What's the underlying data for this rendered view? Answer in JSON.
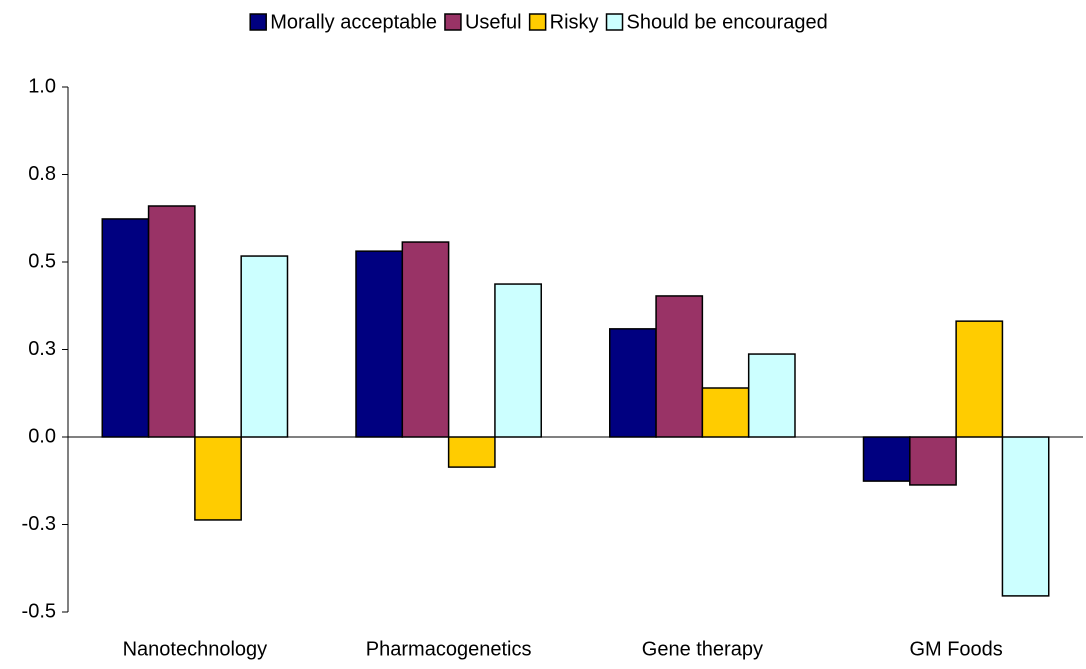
{
  "chart_data": {
    "type": "bar",
    "categories": [
      "Nanotechnology",
      "Pharmacogenetics",
      "Gene therapy",
      "GM Foods"
    ],
    "series": [
      {
        "name": "Morally acceptable",
        "color": "#000080",
        "values": [
          0.623,
          0.531,
          0.309,
          -0.126
        ]
      },
      {
        "name": "Useful",
        "color": "#993366",
        "values": [
          0.66,
          0.557,
          0.403,
          -0.137
        ]
      },
      {
        "name": "Risky",
        "color": "#ffcc00",
        "values": [
          -0.237,
          -0.086,
          0.14,
          0.331
        ]
      },
      {
        "name": "Should be encouraged",
        "color": "#ccffff",
        "values": [
          0.517,
          0.437,
          0.237,
          -0.454
        ]
      }
    ],
    "ylim": [
      -0.5,
      1.0
    ],
    "yticks": [
      {
        "value": -0.5,
        "label": "-0.5"
      },
      {
        "value": -0.25,
        "label": "-0.3"
      },
      {
        "value": 0,
        "label": "0.0"
      },
      {
        "value": 0.25,
        "label": "0.3"
      },
      {
        "value": 0.5,
        "label": "0.5"
      },
      {
        "value": 0.75,
        "label": "0.8"
      },
      {
        "value": 1.0,
        "label": "1.0"
      }
    ],
    "legend": "top"
  }
}
